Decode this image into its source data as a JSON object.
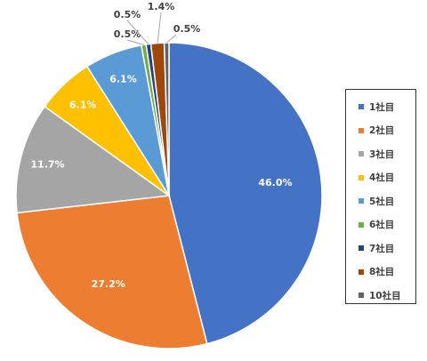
{
  "chart_data": {
    "type": "pie",
    "title": "",
    "slices": [
      {
        "name": "1社目",
        "value": 46.0,
        "label": "46.0%",
        "color": "#4472C4"
      },
      {
        "name": "2社目",
        "value": 27.2,
        "label": "27.2%",
        "color": "#ED7D31"
      },
      {
        "name": "3社目",
        "value": 11.7,
        "label": "11.7%",
        "color": "#A5A5A5"
      },
      {
        "name": "4社目",
        "value": 6.1,
        "label": "6.1%",
        "color": "#FFC000"
      },
      {
        "name": "5社目",
        "value": 6.1,
        "label": "6.1%",
        "color": "#5B9BD5"
      },
      {
        "name": "6社目",
        "value": 0.5,
        "label": "0.5%",
        "color": "#70AD47"
      },
      {
        "name": "7社目",
        "value": 0.5,
        "label": "0.5%",
        "color": "#264478"
      },
      {
        "name": "8社目",
        "value": 1.4,
        "label": "1.4%",
        "color": "#9E480E"
      },
      {
        "name": "10社目",
        "value": 0.5,
        "label": "0.5%",
        "color": "#636363"
      }
    ],
    "legend_position": "right"
  }
}
